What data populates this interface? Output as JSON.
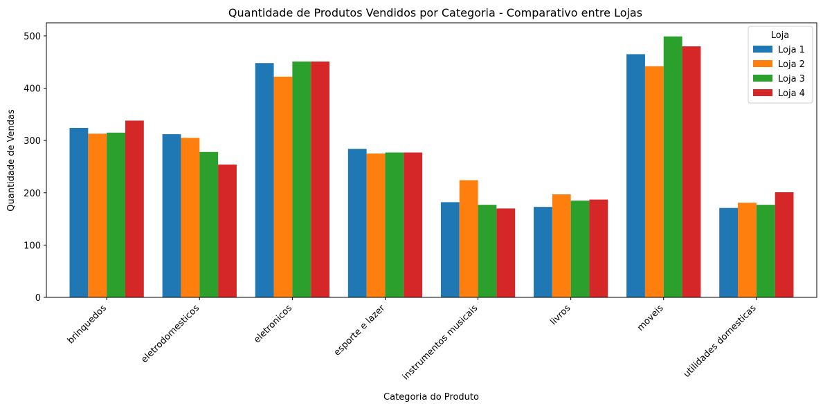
{
  "chart_data": {
    "type": "bar",
    "title": "Quantidade de Produtos Vendidos por Categoria - Comparativo entre Lojas",
    "xlabel": "Categoria do Produto",
    "ylabel": "Quantidade de Vendas",
    "ylim": [
      0,
      525
    ],
    "yticks": [
      0,
      100,
      200,
      300,
      400,
      500
    ],
    "categories": [
      "brinquedos",
      "eletrodomesticos",
      "eletronicos",
      "esporte e lazer",
      "instrumentos musicais",
      "livros",
      "moveis",
      "utilidades domesticas"
    ],
    "legend_title": "Loja",
    "legend_position": "top-right",
    "grid": false,
    "series": [
      {
        "name": "Loja 1",
        "color": "#1f77b4",
        "values": [
          324,
          312,
          448,
          284,
          182,
          173,
          465,
          171
        ]
      },
      {
        "name": "Loja 2",
        "color": "#ff7f0e",
        "values": [
          313,
          305,
          422,
          275,
          224,
          197,
          442,
          181
        ]
      },
      {
        "name": "Loja 3",
        "color": "#2ca02c",
        "values": [
          315,
          278,
          451,
          277,
          177,
          185,
          499,
          177
        ]
      },
      {
        "name": "Loja 4",
        "color": "#d62728",
        "values": [
          338,
          254,
          451,
          277,
          170,
          187,
          480,
          201
        ]
      }
    ]
  }
}
